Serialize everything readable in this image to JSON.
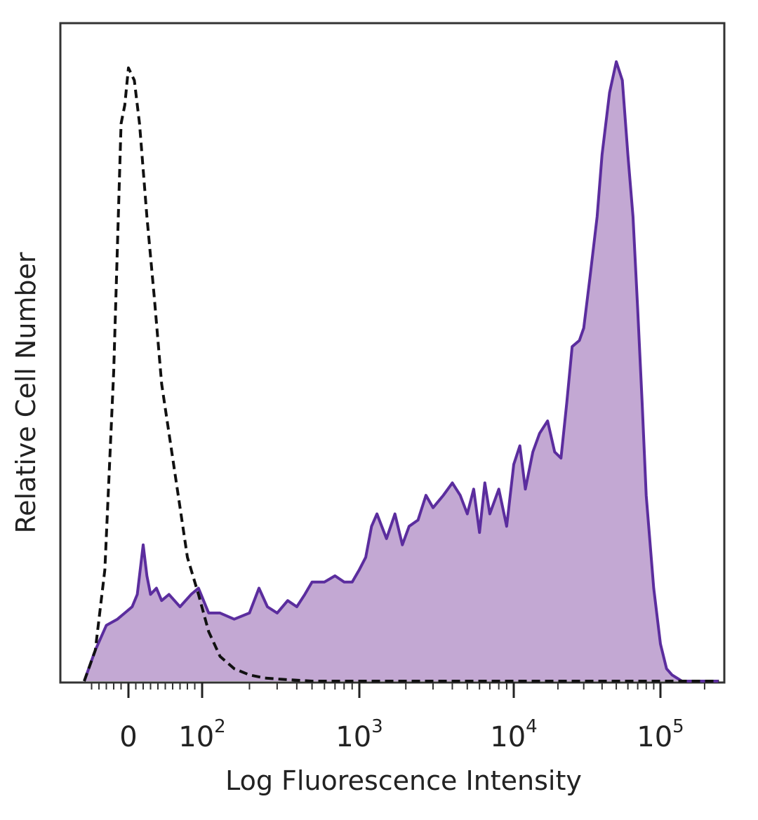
{
  "chart_data": {
    "type": "area",
    "xlabel": "Log Fluorescence Intensity",
    "ylabel": "Relative Cell Number",
    "x_scale": "biexponential",
    "xlim": [
      -60,
      250000
    ],
    "ylim": [
      0,
      100
    ],
    "x_ticks": [
      {
        "value": 0,
        "label": "0",
        "exp": ""
      },
      {
        "value": 100,
        "label": "10",
        "exp": "2"
      },
      {
        "value": 1000,
        "label": "10",
        "exp": "3"
      },
      {
        "value": 10000,
        "label": "10",
        "exp": "4"
      },
      {
        "value": 100000,
        "label": "10",
        "exp": "5"
      }
    ],
    "minor_ticks": [
      -50,
      -40,
      -30,
      -20,
      -10,
      10,
      20,
      30,
      40,
      50,
      60,
      70,
      80,
      90,
      200,
      300,
      400,
      500,
      600,
      700,
      800,
      900,
      2000,
      3000,
      4000,
      5000,
      6000,
      7000,
      8000,
      9000,
      20000,
      30000,
      40000,
      50000,
      60000,
      70000,
      80000,
      90000,
      200000
    ],
    "series": [
      {
        "role": "control",
        "style": "dashed",
        "color": "#111111",
        "x": [
          -60,
          -45,
          -32,
          -20,
          -10,
          -5,
          0,
          8,
          15,
          25,
          35,
          45,
          55,
          65,
          80,
          95,
          110,
          130,
          160,
          200,
          250,
          320,
          500,
          2000,
          250000
        ],
        "y": [
          0,
          5,
          18,
          50,
          90,
          93,
          99,
          97,
          90,
          75,
          62,
          48,
          40,
          32,
          20,
          14,
          8,
          4,
          2,
          1,
          0.5,
          0.3,
          0,
          0,
          0
        ]
      },
      {
        "role": "sample",
        "style": "filled",
        "color": "#5b2d9e",
        "fill": "#c3a8d3",
        "x": [
          -60,
          -45,
          -30,
          -15,
          -5,
          5,
          12,
          20,
          25,
          30,
          38,
          45,
          55,
          70,
          85,
          95,
          110,
          130,
          160,
          200,
          230,
          260,
          300,
          350,
          400,
          450,
          500,
          600,
          700,
          800,
          900,
          1000,
          1100,
          1200,
          1300,
          1500,
          1700,
          1900,
          2100,
          2400,
          2700,
          3000,
          3500,
          4000,
          4500,
          5000,
          5500,
          6000,
          6500,
          7000,
          8000,
          9000,
          10000,
          11000,
          12000,
          13500,
          15000,
          17000,
          19000,
          21000,
          23000,
          25000,
          28000,
          30000,
          33000,
          37000,
          40000,
          45000,
          50000,
          55000,
          60000,
          65000,
          70000,
          75000,
          80000,
          90000,
          100000,
          110000,
          120000,
          140000,
          160000,
          180000,
          200000,
          250000
        ],
        "y": [
          0,
          5,
          9,
          10,
          11,
          12,
          14,
          22,
          17,
          14,
          15,
          13,
          14,
          12,
          14,
          15,
          11,
          11,
          10,
          11,
          15,
          12,
          11,
          13,
          12,
          14,
          16,
          16,
          17,
          16,
          16,
          18,
          20,
          25,
          27,
          23,
          27,
          22,
          25,
          26,
          30,
          28,
          30,
          32,
          30,
          27,
          31,
          24,
          32,
          27,
          31,
          25,
          35,
          38,
          31,
          37,
          40,
          42,
          37,
          36,
          45,
          54,
          55,
          57,
          65,
          75,
          85,
          95,
          100,
          97,
          85,
          75,
          60,
          45,
          30,
          15,
          6,
          2,
          1,
          0,
          0,
          0,
          0,
          0
        ]
      }
    ]
  }
}
